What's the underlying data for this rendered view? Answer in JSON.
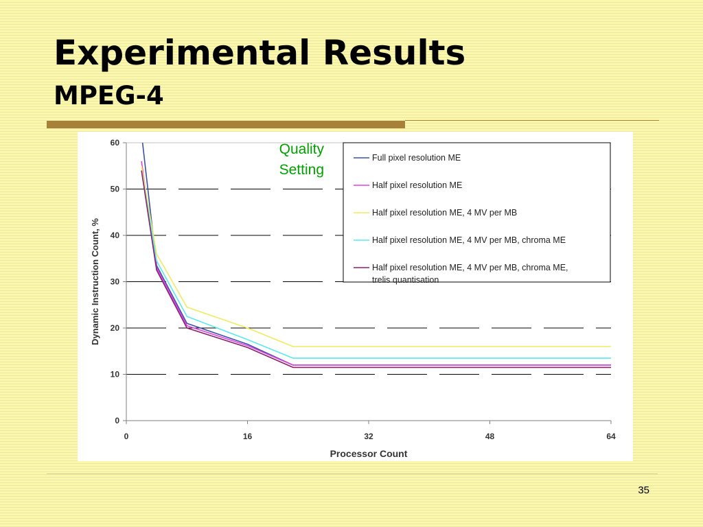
{
  "slide": {
    "title": "Experimental Results",
    "subtitle": "MPEG-4",
    "page_number": "35"
  },
  "colors": {
    "background": "#fbf7ab",
    "rule": "#a7813a",
    "annotation": "#00a000"
  },
  "chart_data": {
    "type": "line",
    "xlabel": "Processor Count",
    "ylabel": "Dynamic Instruction Count, %",
    "xlim": [
      0,
      64
    ],
    "ylim": [
      0,
      60
    ],
    "xticks": [
      0,
      16,
      32,
      48,
      64
    ],
    "yticks": [
      0,
      10,
      20,
      30,
      40,
      50,
      60
    ],
    "grid": "dashed horizontal lines at 10, 20, 30, 40, 50",
    "legend_position": "top-right",
    "annotation": {
      "lines": [
        "Quality",
        "Setting"
      ],
      "x": 20,
      "y": 55
    },
    "x": [
      2,
      4,
      8,
      16,
      22,
      64
    ],
    "series": [
      {
        "name": "Full pixel resolution ME",
        "color": "#3b4fa8",
        "values": [
          62,
          33.5,
          21,
          16.5,
          12,
          12
        ]
      },
      {
        "name": "Half pixel resolution ME",
        "color": "#e040e0",
        "values": [
          56,
          33,
          20.5,
          16.2,
          12,
          12
        ]
      },
      {
        "name": "Half pixel resolution ME, 4 MV per MB",
        "color": "#f0ea60",
        "values": [
          55,
          36,
          24.5,
          20,
          16,
          16
        ]
      },
      {
        "name": "Half pixel resolution ME, 4 MV per MB, chroma ME",
        "color": "#59e8f0",
        "values": [
          54,
          34.5,
          22.5,
          17.5,
          13.5,
          13.5
        ]
      },
      {
        "name": "Half pixel resolution ME, 4 MV per MB, chroma ME, trelis quantisation",
        "color": "#8a1f6e",
        "values": [
          54,
          32.5,
          20,
          15.8,
          11.5,
          11.5
        ]
      }
    ]
  }
}
